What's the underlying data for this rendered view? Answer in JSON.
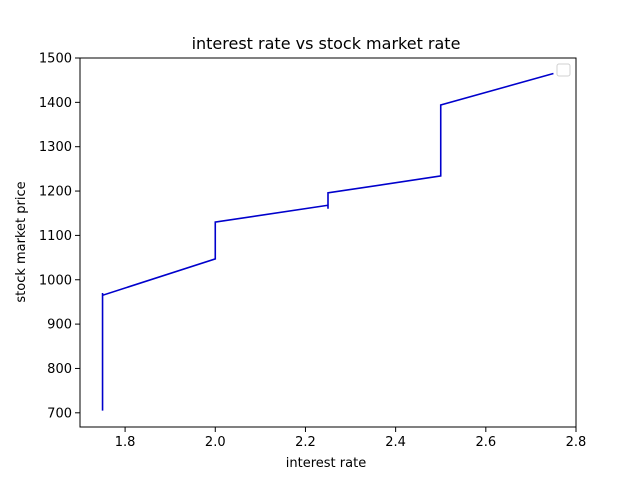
{
  "chart_data": {
    "type": "line",
    "title": "interest rate vs stock market rate",
    "xlabel": "interest rate",
    "ylabel": "stock market price",
    "xlim": [
      1.7,
      2.8
    ],
    "ylim": [
      668,
      1500
    ],
    "xticks": [
      1.8,
      2.0,
      2.2,
      2.4,
      2.6,
      2.8
    ],
    "xtick_labels": [
      "1.8",
      "2.0",
      "2.2",
      "2.4",
      "2.6",
      "2.8"
    ],
    "yticks": [
      700,
      800,
      900,
      1000,
      1100,
      1200,
      1300,
      1400,
      1500
    ],
    "ytick_labels": [
      "700",
      "800",
      "900",
      "1000",
      "1100",
      "1200",
      "1300",
      "1400",
      "1500"
    ],
    "grid": false,
    "legend": "top-right",
    "series": [
      {
        "color": "#0000cc",
        "x": [
          1.75,
          1.75,
          1.75,
          1.75,
          1.75,
          1.75,
          1.75,
          1.75,
          1.75,
          2.0,
          2.0,
          2.25,
          2.25,
          2.25,
          2.5,
          2.5,
          2.75
        ],
        "y": [
          705,
          720,
          705,
          865,
          880,
          860,
          970,
          945,
          965,
          1047,
          1130,
          1168,
          1160,
          1196,
          1234,
          1394,
          1465
        ]
      }
    ]
  }
}
